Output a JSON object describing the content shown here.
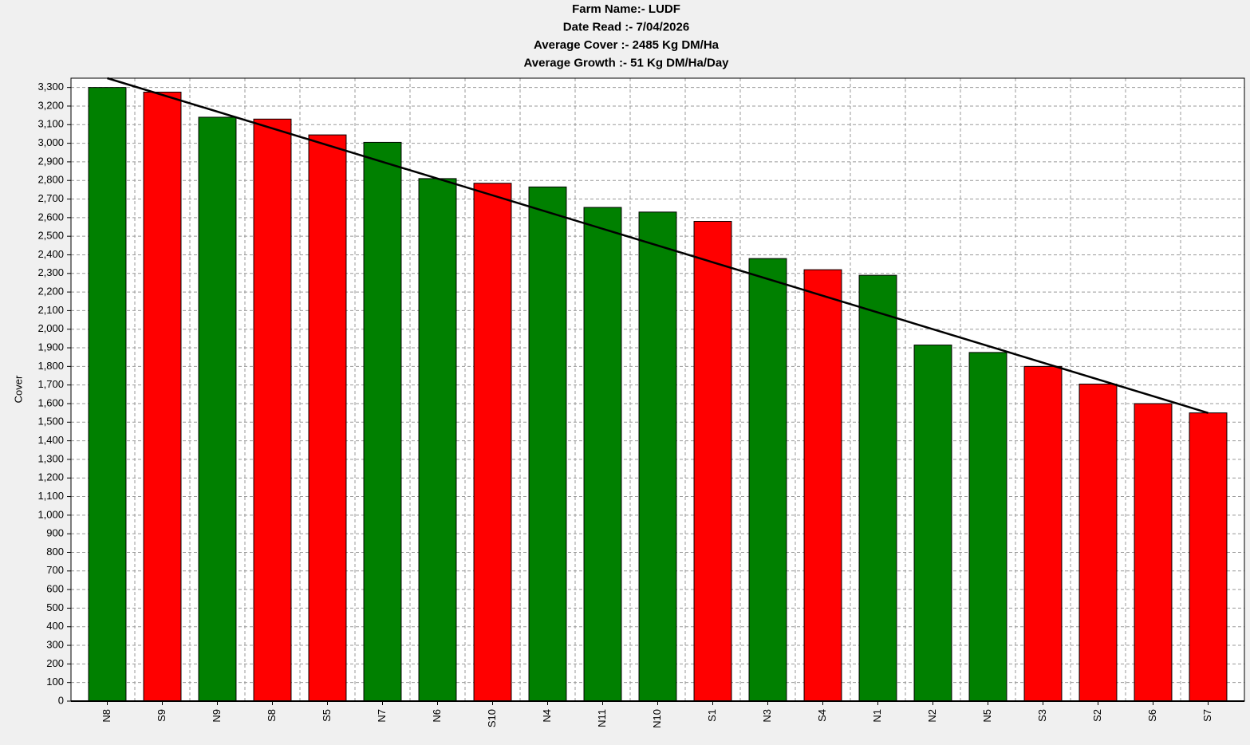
{
  "chart_data": {
    "type": "bar",
    "title_lines": [
      "Farm Name:- LUDF",
      "Date Read :-  7/04/2026",
      "Average Cover :-  2485 Kg DM/Ha",
      "Average Growth :-  51 Kg DM/Ha/Day"
    ],
    "y_label": "Cover",
    "categories": [
      "N8",
      "S9",
      "N9",
      "S8",
      "S5",
      "N7",
      "N6",
      "S10",
      "N4",
      "N11",
      "N10",
      "S1",
      "N3",
      "S4",
      "N1",
      "N2",
      "N5",
      "S3",
      "S2",
      "S6",
      "S7"
    ],
    "values": [
      3300,
      3275,
      3140,
      3130,
      3045,
      3005,
      2810,
      2785,
      2765,
      2655,
      2630,
      2580,
      2380,
      2320,
      2290,
      1915,
      1875,
      1800,
      1705,
      1600,
      1550
    ],
    "colors": [
      "#008000",
      "#ff0000",
      "#008000",
      "#ff0000",
      "#ff0000",
      "#008000",
      "#008000",
      "#ff0000",
      "#008000",
      "#008000",
      "#008000",
      "#ff0000",
      "#008000",
      "#ff0000",
      "#008000",
      "#008000",
      "#008000",
      "#ff0000",
      "#ff0000",
      "#ff0000",
      "#ff0000"
    ],
    "target_line": {
      "x": [
        "N8",
        "S7"
      ],
      "values": [
        3350,
        1550
      ],
      "color": "#000000"
    },
    "ylim": [
      0,
      3350
    ],
    "yticks": [
      0,
      100,
      200,
      300,
      400,
      500,
      600,
      700,
      800,
      900,
      {
        "value": 1000,
        "label": "1,000"
      },
      {
        "value": 1100,
        "label": "1,100"
      },
      {
        "value": 1200,
        "label": "1,200"
      },
      {
        "value": 1300,
        "label": "1,300"
      },
      {
        "value": 1400,
        "label": "1,400"
      },
      {
        "value": 1500,
        "label": "1,500"
      },
      {
        "value": 1600,
        "label": "1,600"
      },
      {
        "value": 1700,
        "label": "1,700"
      },
      {
        "value": 1800,
        "label": "1,800"
      },
      {
        "value": 1900,
        "label": "1,900"
      },
      {
        "value": 2000,
        "label": "2,000"
      },
      {
        "value": 2100,
        "label": "2,100"
      },
      {
        "value": 2200,
        "label": "2,200"
      },
      {
        "value": 2300,
        "label": "2,300"
      },
      {
        "value": 2400,
        "label": "2,400"
      },
      {
        "value": 2500,
        "label": "2,500"
      },
      {
        "value": 2600,
        "label": "2,600"
      },
      {
        "value": 2700,
        "label": "2,700"
      },
      {
        "value": 2800,
        "label": "2,800"
      },
      {
        "value": 2900,
        "label": "2,900"
      },
      {
        "value": 3000,
        "label": "3,000"
      },
      {
        "value": 3100,
        "label": "3,100"
      },
      {
        "value": 3200,
        "label": "3,200"
      },
      {
        "value": 3300,
        "label": "3,300"
      }
    ],
    "grid": true
  }
}
